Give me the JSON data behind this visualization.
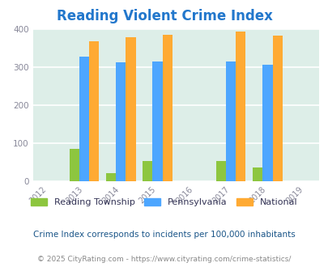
{
  "title": "Reading Violent Crime Index",
  "subtitle": "Crime Index corresponds to incidents per 100,000 inhabitants",
  "copyright": "© 2025 CityRating.com - https://www.cityrating.com/crime-statistics/",
  "years": [
    2013,
    2014,
    2015,
    2017,
    2018
  ],
  "x_ticks": [
    2012,
    2013,
    2014,
    2015,
    2016,
    2017,
    2018,
    2019
  ],
  "reading_township": [
    85,
    22,
    55,
    55,
    37
  ],
  "pennsylvania": [
    328,
    314,
    315,
    315,
    307
  ],
  "national": [
    369,
    379,
    386,
    394,
    383
  ],
  "reading_color": "#8dc63f",
  "pa_color": "#4da6ff",
  "national_color": "#ffaa33",
  "bg_color": "#ddeee8",
  "title_color": "#2277cc",
  "tick_color": "#888899",
  "legend_text_color": "#333355",
  "subtitle_color": "#1a5588",
  "copyright_color": "#888888",
  "ylim": [
    0,
    400
  ],
  "yticks": [
    0,
    100,
    200,
    300,
    400
  ],
  "bar_width": 0.27,
  "legend_labels": [
    "Reading Township",
    "Pennsylvania",
    "National"
  ]
}
